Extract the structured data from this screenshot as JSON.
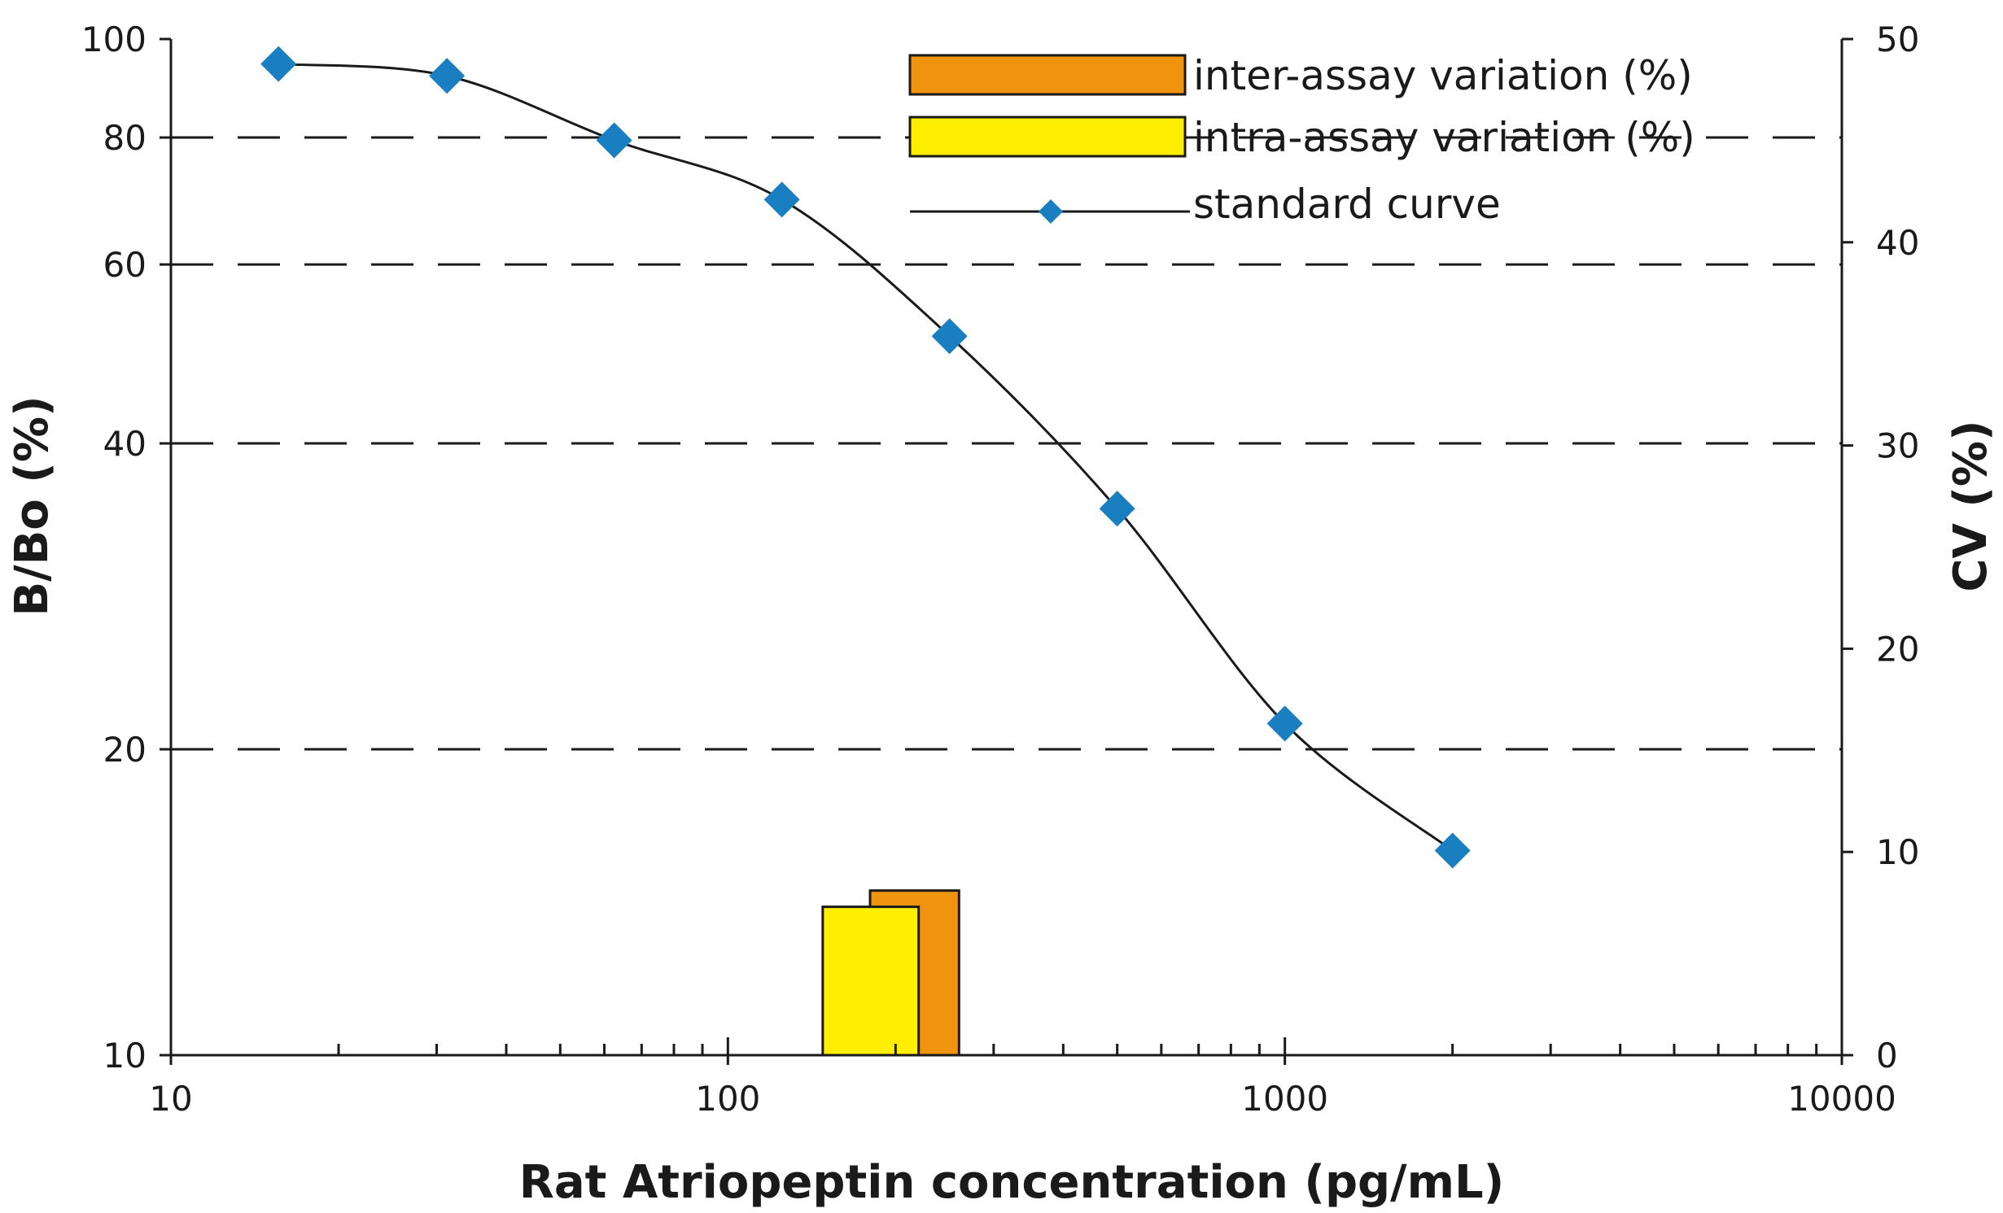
{
  "chart_data": {
    "type": "line",
    "xlabel": "Rat Atriopeptin concentration (pg/mL)",
    "ylabel": "B/Bo (%)",
    "y2label": "CV (%)",
    "x_scale": "log",
    "xlim": [
      10,
      10000
    ],
    "x_ticks": [
      10,
      100,
      1000,
      10000
    ],
    "x_tick_labels": [
      "10",
      "100",
      "1000",
      "10000"
    ],
    "y_scale": "log",
    "ylim": [
      10,
      100
    ],
    "y_ticks": [
      10,
      20,
      40,
      60,
      80,
      100
    ],
    "y_tick_labels": [
      "10",
      "20",
      "40",
      "60",
      "80",
      "100"
    ],
    "y2_scale": "linear",
    "y2lim": [
      0,
      50
    ],
    "y2_ticks": [
      0,
      10,
      20,
      30,
      40,
      50
    ],
    "y2_tick_labels": [
      "0",
      "10",
      "20",
      "30",
      "40",
      "50"
    ],
    "grid": "dashed horizontal at 20, 40, 60, 80",
    "legend_placement": "top-right",
    "standard_curve": {
      "name": "standard curve",
      "color": "#1a7fc1",
      "x": [
        15.6,
        31.3,
        62.5,
        125,
        250,
        500,
        1000,
        2000
      ],
      "y": [
        94.5,
        92.0,
        79.5,
        69.5,
        51.0,
        34.5,
        21.2,
        15.9
      ]
    },
    "bars": [
      {
        "name": "inter-assay variation (%)",
        "color": "#f0930f",
        "x_range": [
          180,
          260
        ],
        "value": 8.1
      },
      {
        "name": "intra-assay variation (%)",
        "color": "#ffee00",
        "x_range": [
          148,
          220
        ],
        "value": 7.3
      }
    ],
    "legend": [
      {
        "label": "inter-assay variation (%)",
        "kind": "bar",
        "color": "#f0930f"
      },
      {
        "label": "intra-assay variation (%)",
        "kind": "bar",
        "color": "#ffee00"
      },
      {
        "label": "standard curve",
        "kind": "line",
        "color": "#1a7fc1"
      }
    ]
  }
}
